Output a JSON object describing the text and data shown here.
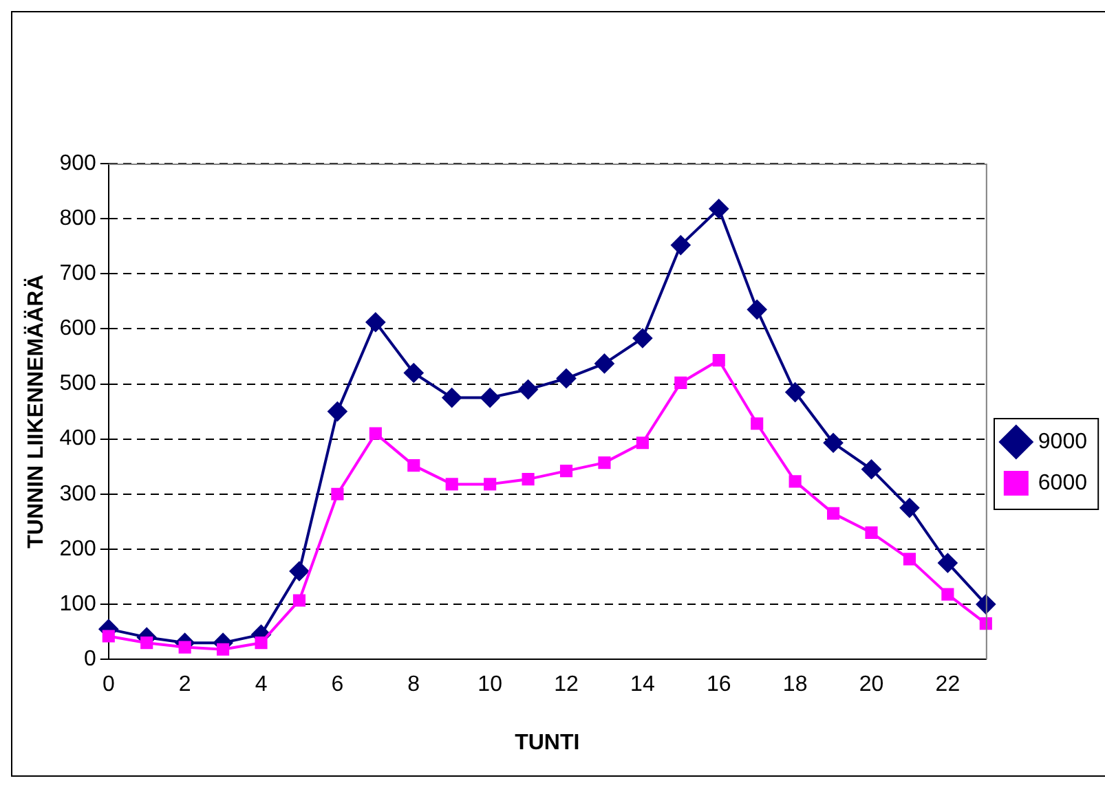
{
  "chart_data": {
    "type": "line",
    "xlabel": "TUNTI",
    "ylabel": "TUNNIN LIIKENNEMÄÄRÄ",
    "categories": [
      "0",
      null,
      "2",
      null,
      "4",
      null,
      "6",
      null,
      "8",
      null,
      "10",
      null,
      "12",
      null,
      "14",
      null,
      "16",
      null,
      "18",
      null,
      "20",
      null,
      "22",
      null
    ],
    "series": [
      {
        "name": "9000",
        "color": "#000080",
        "marker": "diamond",
        "values": [
          55,
          40,
          30,
          30,
          45,
          160,
          450,
          612,
          520,
          475,
          475,
          490,
          510,
          537,
          583,
          752,
          818,
          635,
          485,
          393,
          345,
          275,
          175,
          100
        ]
      },
      {
        "name": "6000",
        "color": "#ff00ff",
        "marker": "square",
        "values": [
          42,
          30,
          22,
          18,
          30,
          107,
          300,
          410,
          352,
          318,
          318,
          327,
          342,
          357,
          393,
          502,
          543,
          428,
          323,
          265,
          230,
          182,
          118,
          65
        ]
      }
    ],
    "ylim": [
      0,
      900
    ],
    "yticks": [
      0,
      100,
      200,
      300,
      400,
      500,
      600,
      700,
      800,
      900
    ],
    "grid": "y",
    "legend": "right",
    "line_style": "solid"
  }
}
